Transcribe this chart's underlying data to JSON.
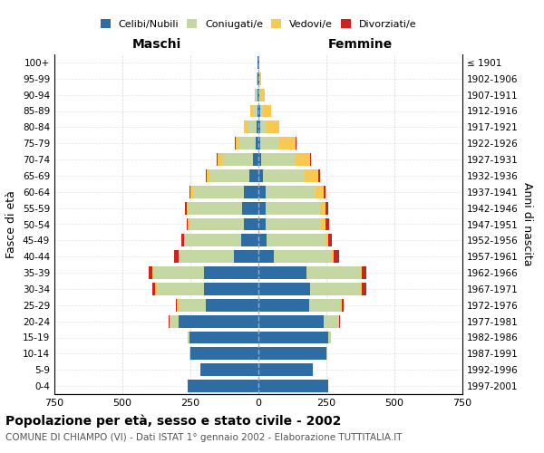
{
  "age_groups": [
    "0-4",
    "5-9",
    "10-14",
    "15-19",
    "20-24",
    "25-29",
    "30-34",
    "35-39",
    "40-44",
    "45-49",
    "50-54",
    "55-59",
    "60-64",
    "65-69",
    "70-74",
    "75-79",
    "80-84",
    "85-89",
    "90-94",
    "95-99",
    "100+"
  ],
  "birth_years": [
    "1997-2001",
    "1992-1996",
    "1987-1991",
    "1982-1986",
    "1977-1981",
    "1972-1976",
    "1967-1971",
    "1962-1966",
    "1957-1961",
    "1952-1956",
    "1947-1951",
    "1942-1946",
    "1937-1941",
    "1932-1936",
    "1927-1931",
    "1922-1926",
    "1917-1921",
    "1912-1916",
    "1907-1911",
    "1902-1906",
    "≤ 1901"
  ],
  "maschi": {
    "celibi": [
      260,
      215,
      250,
      255,
      295,
      195,
      200,
      200,
      90,
      65,
      55,
      60,
      55,
      35,
      20,
      10,
      8,
      5,
      4,
      2,
      2
    ],
    "coniugati": [
      0,
      0,
      2,
      5,
      30,
      100,
      175,
      185,
      200,
      205,
      200,
      200,
      185,
      145,
      115,
      60,
      30,
      15,
      6,
      2,
      0
    ],
    "vedovi": [
      0,
      0,
      0,
      0,
      2,
      5,
      5,
      5,
      5,
      5,
      5,
      5,
      10,
      10,
      15,
      15,
      15,
      10,
      5,
      2,
      0
    ],
    "divorziati": [
      0,
      0,
      0,
      0,
      2,
      5,
      10,
      15,
      15,
      10,
      5,
      5,
      5,
      2,
      2,
      2,
      0,
      0,
      0,
      0,
      0
    ]
  },
  "femmine": {
    "nubili": [
      255,
      200,
      250,
      255,
      240,
      185,
      190,
      175,
      55,
      30,
      25,
      25,
      25,
      15,
      10,
      8,
      5,
      5,
      3,
      2,
      2
    ],
    "coniugate": [
      0,
      0,
      2,
      10,
      55,
      115,
      185,
      200,
      215,
      215,
      205,
      200,
      185,
      155,
      125,
      70,
      25,
      10,
      5,
      2,
      0
    ],
    "vedove": [
      0,
      0,
      0,
      0,
      2,
      5,
      5,
      5,
      8,
      10,
      15,
      20,
      30,
      50,
      55,
      60,
      45,
      30,
      15,
      5,
      1
    ],
    "divorziate": [
      0,
      0,
      0,
      0,
      2,
      8,
      15,
      18,
      18,
      15,
      15,
      10,
      8,
      5,
      2,
      2,
      0,
      0,
      0,
      0,
      0
    ]
  },
  "colors": {
    "celibi": "#2E6DA4",
    "coniugati": "#C5D8A4",
    "vedovi": "#F9C851",
    "divorziati": "#CC2222"
  },
  "title": "Popolazione per età, sesso e stato civile - 2002",
  "subtitle": "COMUNE DI CHIAMPO (VI) - Dati ISTAT 1° gennaio 2002 - Elaborazione TUTTITALIA.IT",
  "xlim": 750,
  "xlabel_maschi": "Maschi",
  "xlabel_femmine": "Femmine",
  "ylabel_left": "Fasce di età",
  "ylabel_right": "Anni di nascita",
  "legend_labels": [
    "Celibi/Nubili",
    "Coniugati/e",
    "Vedovi/e",
    "Divorziati/e"
  ],
  "bg_color": "#ffffff",
  "grid_color": "#cccccc"
}
